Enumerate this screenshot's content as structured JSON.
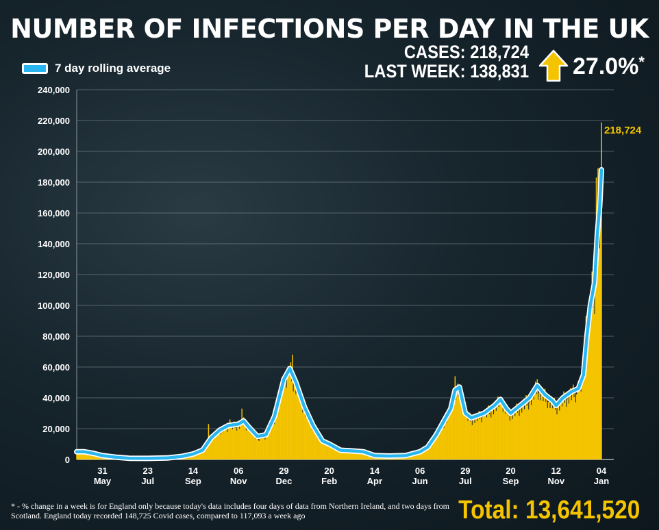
{
  "header": {
    "title": "NUMBER OF INFECTIONS PER DAY IN THE UK",
    "cases_line": "CASES: 218,724",
    "last_week_line": "LAST WEEK: 138,831",
    "change": "27.0%",
    "change_mark": "*"
  },
  "legend": {
    "label": "7 day rolling average",
    "color": "#29b6f0"
  },
  "footnote": "* - % change in a week is for England only because today's data includes four days of data from Northern Ireland, and two days from Scotland. England today recorded 148,725 Covid cases, compared to 117,093 a week ago",
  "total": "Total: 13,641,520",
  "colors": {
    "bars": "#f5c400",
    "line": "#29b6f0",
    "line_outline": "#ffffff",
    "arrow": "#f5c400",
    "grid": "#8a969c"
  },
  "chart_data": {
    "type": "bar",
    "title": "NUMBER OF INFECTIONS PER DAY IN THE UK",
    "ylim": [
      0,
      240000
    ],
    "yticks": [
      0,
      20000,
      40000,
      60000,
      80000,
      100000,
      120000,
      140000,
      160000,
      180000,
      200000,
      220000,
      240000
    ],
    "ytick_labels": [
      "0",
      "20,000",
      "40,000",
      "60,000",
      "80,000",
      "100,000",
      "120,000",
      "140,000",
      "160,000",
      "180,000",
      "200,000",
      "220,000",
      "240,000"
    ],
    "xlim": [
      "2020-05-01",
      "2022-01-04"
    ],
    "xticks": [
      {
        "date": "2020-05-31",
        "day": "31",
        "month": "May"
      },
      {
        "date": "2020-07-23",
        "day": "23",
        "month": "Jul"
      },
      {
        "date": "2020-09-14",
        "day": "14",
        "month": "Sep"
      },
      {
        "date": "2020-11-06",
        "day": "06",
        "month": "Nov"
      },
      {
        "date": "2020-12-29",
        "day": "29",
        "month": "Dec"
      },
      {
        "date": "2021-02-20",
        "day": "20",
        "month": "Feb"
      },
      {
        "date": "2021-04-14",
        "day": "14",
        "month": "Apr"
      },
      {
        "date": "2021-06-06",
        "day": "06",
        "month": "Jun"
      },
      {
        "date": "2021-07-29",
        "day": "29",
        "month": "Jul"
      },
      {
        "date": "2021-09-20",
        "day": "20",
        "month": "Sep"
      },
      {
        "date": "2021-11-12",
        "day": "12",
        "month": "Nov"
      },
      {
        "date": "2022-01-04",
        "day": "04",
        "month": "Jan"
      }
    ],
    "series": [
      {
        "name": "7 day rolling average",
        "kind": "line",
        "points": [
          [
            "2020-05-01",
            5000
          ],
          [
            "2020-05-10",
            5000
          ],
          [
            "2020-05-20",
            4000
          ],
          [
            "2020-05-31",
            2500
          ],
          [
            "2020-06-15",
            1500
          ],
          [
            "2020-07-01",
            800
          ],
          [
            "2020-07-23",
            700
          ],
          [
            "2020-08-15",
            1000
          ],
          [
            "2020-09-01",
            2000
          ],
          [
            "2020-09-14",
            3500
          ],
          [
            "2020-09-25",
            6000
          ],
          [
            "2020-10-05",
            14000
          ],
          [
            "2020-10-15",
            19000
          ],
          [
            "2020-10-25",
            22000
          ],
          [
            "2020-11-06",
            23000
          ],
          [
            "2020-11-12",
            25000
          ],
          [
            "2020-11-18",
            21000
          ],
          [
            "2020-11-28",
            15000
          ],
          [
            "2020-12-08",
            16000
          ],
          [
            "2020-12-18",
            28000
          ],
          [
            "2020-12-29",
            52000
          ],
          [
            "2021-01-05",
            59000
          ],
          [
            "2021-01-12",
            50000
          ],
          [
            "2021-01-22",
            34000
          ],
          [
            "2021-02-01",
            22000
          ],
          [
            "2021-02-12",
            12000
          ],
          [
            "2021-02-20",
            10000
          ],
          [
            "2021-03-05",
            6000
          ],
          [
            "2021-03-20",
            5500
          ],
          [
            "2021-04-01",
            5000
          ],
          [
            "2021-04-14",
            2500
          ],
          [
            "2021-05-01",
            2200
          ],
          [
            "2021-05-20",
            2500
          ],
          [
            "2021-06-06",
            5000
          ],
          [
            "2021-06-15",
            8000
          ],
          [
            "2021-06-25",
            16000
          ],
          [
            "2021-07-05",
            26000
          ],
          [
            "2021-07-12",
            33000
          ],
          [
            "2021-07-17",
            45000
          ],
          [
            "2021-07-22",
            47000
          ],
          [
            "2021-07-29",
            30000
          ],
          [
            "2021-08-05",
            27000
          ],
          [
            "2021-08-20",
            30000
          ],
          [
            "2021-09-01",
            35000
          ],
          [
            "2021-09-08",
            39000
          ],
          [
            "2021-09-15",
            33000
          ],
          [
            "2021-09-20",
            30000
          ],
          [
            "2021-10-01",
            35000
          ],
          [
            "2021-10-12",
            40000
          ],
          [
            "2021-10-21",
            48000
          ],
          [
            "2021-10-30",
            42000
          ],
          [
            "2021-11-08",
            38000
          ],
          [
            "2021-11-12",
            35000
          ],
          [
            "2021-11-20",
            40000
          ],
          [
            "2021-11-30",
            44000
          ],
          [
            "2021-12-08",
            46000
          ],
          [
            "2021-12-14",
            55000
          ],
          [
            "2021-12-18",
            80000
          ],
          [
            "2021-12-22",
            100000
          ],
          [
            "2021-12-27",
            115000
          ],
          [
            "2021-12-30",
            145000
          ],
          [
            "2022-01-02",
            165000
          ],
          [
            "2022-01-04",
            188000
          ]
        ]
      },
      {
        "name": "Daily cases",
        "kind": "bar",
        "points": [
          [
            "2020-05-01",
            5500
          ],
          [
            "2020-05-31",
            3000
          ],
          [
            "2020-07-23",
            800
          ],
          [
            "2020-09-14",
            4000
          ],
          [
            "2020-10-02",
            23000
          ],
          [
            "2020-10-13",
            18000
          ],
          [
            "2020-10-27",
            26000
          ],
          [
            "2020-11-06",
            24000
          ],
          [
            "2020-11-10",
            33000
          ],
          [
            "2020-11-18",
            22000
          ],
          [
            "2020-11-30",
            12000
          ],
          [
            "2020-12-15",
            27000
          ],
          [
            "2020-12-29",
            53000
          ],
          [
            "2021-01-04",
            58000
          ],
          [
            "2021-01-08",
            68000
          ],
          [
            "2021-01-15",
            48000
          ],
          [
            "2021-02-01",
            20000
          ],
          [
            "2021-02-20",
            10000
          ],
          [
            "2021-03-20",
            5500
          ],
          [
            "2021-04-14",
            2500
          ],
          [
            "2021-06-06",
            5500
          ],
          [
            "2021-07-10",
            32000
          ],
          [
            "2021-07-17",
            54000
          ],
          [
            "2021-07-22",
            46000
          ],
          [
            "2021-07-29",
            29000
          ],
          [
            "2021-08-20",
            32000
          ],
          [
            "2021-09-08",
            40000
          ],
          [
            "2021-09-20",
            30000
          ],
          [
            "2021-10-21",
            52000
          ],
          [
            "2021-11-12",
            36000
          ],
          [
            "2021-12-08",
            51000
          ],
          [
            "2021-12-17",
            93000
          ],
          [
            "2021-12-22",
            106000
          ],
          [
            "2021-12-24",
            122000
          ],
          [
            "2021-12-29",
            183000
          ],
          [
            "2021-12-31",
            189000
          ],
          [
            "2022-01-01",
            162000
          ],
          [
            "2022-01-02",
            137000
          ],
          [
            "2022-01-03",
            157000
          ],
          [
            "2022-01-04",
            218724
          ]
        ]
      }
    ],
    "annotations": [
      {
        "date": "2022-01-04",
        "text": "218,724"
      }
    ]
  }
}
